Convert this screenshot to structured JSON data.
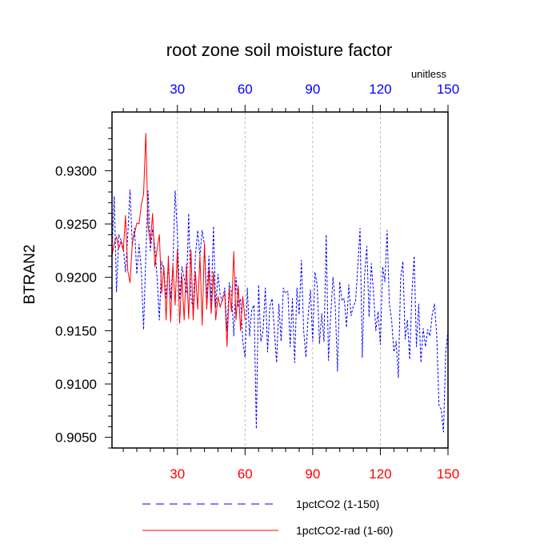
{
  "chart_data": {
    "type": "line",
    "title": "root zone soil moisture factor",
    "units_label": "unitless",
    "ylabel": "BTRAN2",
    "xlabel": "",
    "xlim": [
      1,
      150
    ],
    "ylim": [
      0.904,
      0.9355
    ],
    "x_ticks": [
      30,
      60,
      90,
      120,
      150
    ],
    "y_ticks": [
      0.905,
      0.91,
      0.915,
      0.92,
      0.925,
      0.93
    ],
    "y_tick_labels": [
      "0.9050",
      "0.9100",
      "0.9150",
      "0.9200",
      "0.9250",
      "0.9300"
    ],
    "grid": "vertical dashed at x ticks",
    "colors": {
      "top_axis_labels": "#0000ff",
      "bottom_axis_labels": "#ff0000"
    },
    "legend_position": "bottom",
    "series": [
      {
        "name": "1pctCO2 (1-150)",
        "color": "#0000ff",
        "dash": "dashed",
        "x_start": 1,
        "values": [
          0.9225,
          0.9276,
          0.9186,
          0.924,
          0.9235,
          0.9228,
          0.9205,
          0.924,
          0.9282,
          0.923,
          0.9246,
          0.9203,
          0.9231,
          0.9207,
          0.9151,
          0.922,
          0.9281,
          0.9225,
          0.9245,
          0.9228,
          0.92,
          0.916,
          0.9215,
          0.9208,
          0.9181,
          0.9213,
          0.918,
          0.9211,
          0.9281,
          0.9241,
          0.9179,
          0.921,
          0.92,
          0.9185,
          0.926,
          0.9181,
          0.917,
          0.9221,
          0.9244,
          0.922,
          0.9244,
          0.923,
          0.918,
          0.922,
          0.9175,
          0.9248,
          0.9172,
          0.9203,
          0.9183,
          0.9178,
          0.919,
          0.915,
          0.9195,
          0.9186,
          0.9145,
          0.92,
          0.9172,
          0.918,
          0.914,
          0.9125,
          0.919,
          0.9145,
          0.917,
          0.9174,
          0.9058,
          0.9193,
          0.914,
          0.915,
          0.919,
          0.913,
          0.9173,
          0.918,
          0.915,
          0.912,
          0.9175,
          0.914,
          0.919,
          0.9185,
          0.9187,
          0.9135,
          0.918,
          0.912,
          0.919,
          0.9165,
          0.9216,
          0.915,
          0.9125,
          0.9165,
          0.9188,
          0.914,
          0.9205,
          0.9193,
          0.9138,
          0.9166,
          0.914,
          0.924,
          0.9122,
          0.9165,
          0.92,
          0.9173,
          0.9112,
          0.9196,
          0.9178,
          0.918,
          0.9153,
          0.9193,
          0.9164,
          0.9173,
          0.9177,
          0.921,
          0.9246,
          0.9125,
          0.9202,
          0.9229,
          0.9163,
          0.9213,
          0.9184,
          0.915,
          0.9168,
          0.9137,
          0.921,
          0.9196,
          0.9244,
          0.9175,
          0.916,
          0.913,
          0.914,
          0.9106,
          0.92,
          0.9215,
          0.9142,
          0.916,
          0.9123,
          0.9185,
          0.922,
          0.9135,
          0.9175,
          0.912,
          0.9152,
          0.9135,
          0.9151,
          0.9145,
          0.9165,
          0.9175,
          0.9146,
          0.908,
          0.9076,
          0.9055,
          0.913,
          0.915
        ]
      },
      {
        "name": "1pctCO2-rad (1-60)",
        "color": "#ff0000",
        "dash": "solid",
        "x_start": 1,
        "values": [
          0.922,
          0.9232,
          0.9238,
          0.9227,
          0.9234,
          0.9225,
          0.9258,
          0.9206,
          0.9195,
          0.9232,
          0.9241,
          0.9251,
          0.925,
          0.9268,
          0.9278,
          0.9335,
          0.9248,
          0.9232,
          0.926,
          0.921,
          0.9227,
          0.924,
          0.9185,
          0.921,
          0.916,
          0.922,
          0.9158,
          0.9212,
          0.9174,
          0.9226,
          0.9157,
          0.9202,
          0.916,
          0.9212,
          0.9161,
          0.9226,
          0.916,
          0.9205,
          0.917,
          0.922,
          0.9155,
          0.9232,
          0.917,
          0.9208,
          0.9166,
          0.9205,
          0.916,
          0.9182,
          0.9172,
          0.918,
          0.9185,
          0.9135,
          0.919,
          0.9168,
          0.9224,
          0.916,
          0.9192,
          0.915,
          0.9182,
          0.916
        ]
      }
    ]
  }
}
